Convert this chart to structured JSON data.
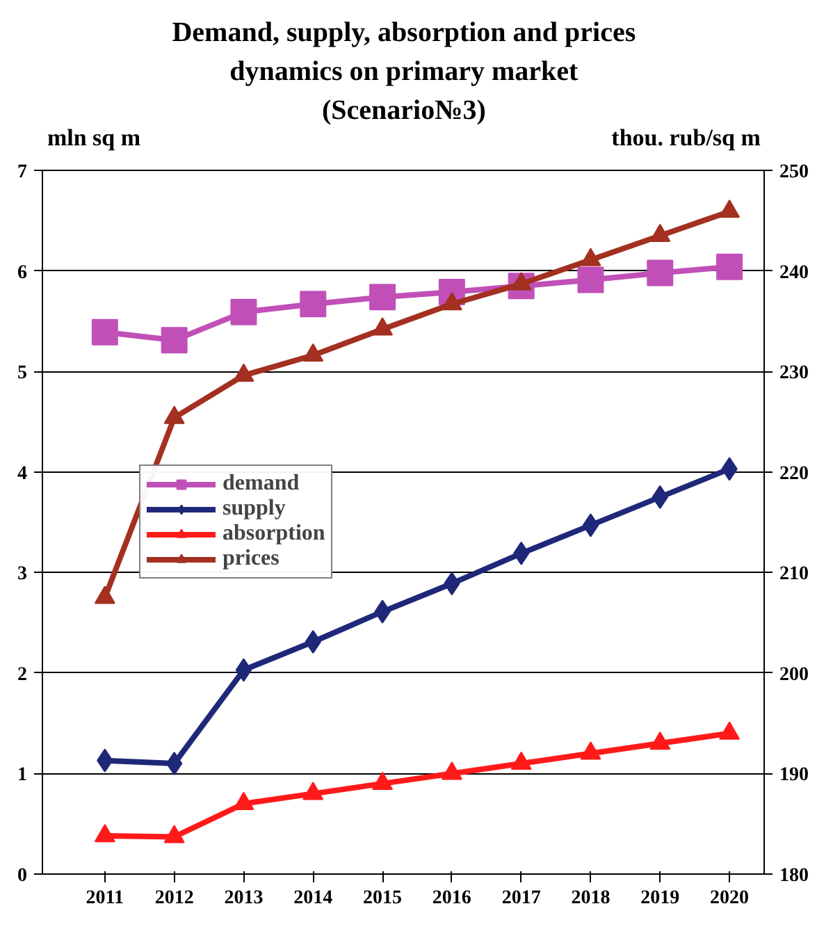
{
  "chart_data": {
    "type": "line",
    "title": "Demand, supply, absorption and prices dynamics on primary market (Scenario№3)",
    "ylabel": "mln sq m",
    "y2label": "thou. rub/sq m",
    "categories": [
      "2011",
      "2012",
      "2013",
      "2014",
      "2015",
      "2016",
      "2017",
      "2018",
      "2019",
      "2020"
    ],
    "series": [
      {
        "name": "demand",
        "color": "#c050b8",
        "marker": "square",
        "values": [
          5.39,
          5.31,
          5.59,
          5.67,
          5.74,
          5.79,
          5.85,
          5.91,
          5.98,
          6.04
        ]
      },
      {
        "name": "supply",
        "color": "#1f2878",
        "marker": "diamond",
        "values": [
          1.13,
          1.1,
          2.03,
          2.31,
          2.61,
          2.89,
          3.19,
          3.47,
          3.75,
          4.03
        ]
      },
      {
        "name": "absorption",
        "color": "#ff1a1a",
        "marker": "triangle",
        "values": [
          0.38,
          0.37,
          0.7,
          0.8,
          0.9,
          1.0,
          1.1,
          1.2,
          1.3,
          1.4
        ]
      },
      {
        "name": "prices",
        "color": "#a33020",
        "marker": "triangle",
        "axis": "y2",
        "values": [
          207.5,
          225.4,
          229.6,
          231.6,
          234.2,
          236.7,
          238.7,
          241.1,
          243.5,
          245.9
        ]
      }
    ],
    "ylim": [
      0,
      7
    ],
    "yticks": [
      0,
      1,
      2,
      3,
      4,
      5,
      6,
      7
    ],
    "y2lim": [
      180,
      250
    ],
    "y2ticks": [
      180,
      190,
      200,
      210,
      220,
      230,
      240,
      250
    ],
    "grid": "y",
    "legend": "left",
    "line_style": "solid"
  }
}
